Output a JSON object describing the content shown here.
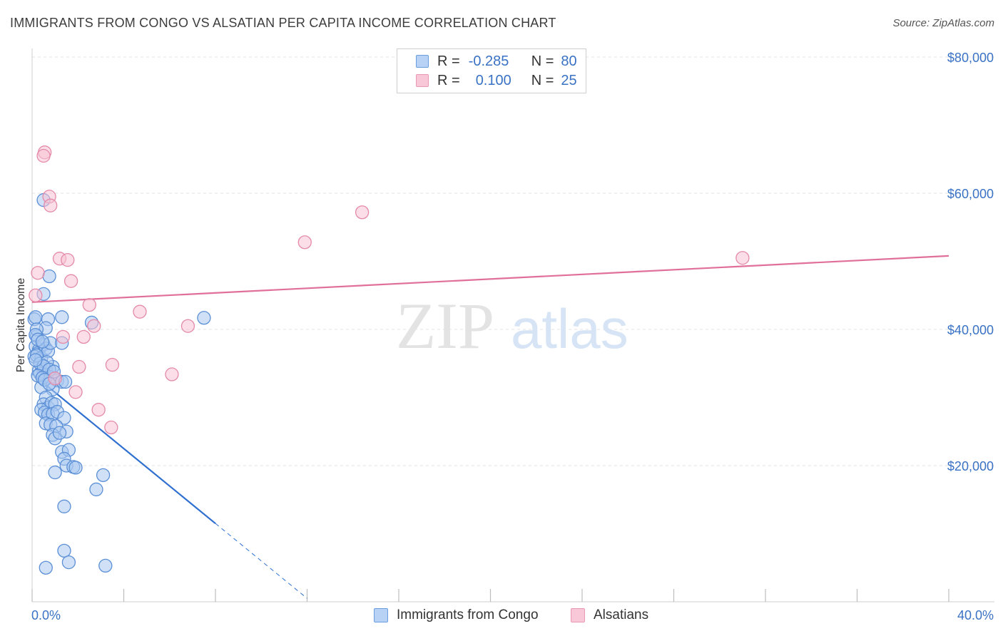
{
  "header": {
    "title": "IMMIGRANTS FROM CONGO VS ALSATIAN PER CAPITA INCOME CORRELATION CHART",
    "source": "Source: ZipAtlas.com"
  },
  "watermark": {
    "zip": "ZIP",
    "atlas": "atlas"
  },
  "legend": {
    "rows": [
      {
        "r_label": "R =",
        "r_value": "-0.285",
        "n_label": "N =",
        "n_value": "80",
        "fill": "#b8d2f5",
        "stroke": "#6a9de0"
      },
      {
        "r_label": "R =",
        "r_value": "0.100",
        "n_label": "N =",
        "n_value": "25",
        "fill": "#f9c8d8",
        "stroke": "#e898b2"
      }
    ]
  },
  "bottom_legend": [
    {
      "label": "Immigrants from Congo",
      "fill": "#b8d2f5",
      "stroke": "#6a9de0"
    },
    {
      "label": "Alsatians",
      "fill": "#f9c8d8",
      "stroke": "#e898b2"
    }
  ],
  "colors": {
    "blue_fill": "#a9c8f0",
    "blue_stroke": "#5b8fd6",
    "blue_line": "#2e6fd0",
    "pink_fill": "#f7c2d3",
    "pink_stroke": "#e48aa9",
    "pink_line": "#e0709a",
    "grid": "#e3e3e3",
    "axis_text": "#3a72c4"
  },
  "chart_data": {
    "type": "scatter",
    "title": "IMMIGRANTS FROM CONGO VS ALSATIAN PER CAPITA INCOME CORRELATION CHART",
    "xlabel": "",
    "ylabel": "Per Capita Income",
    "xlim": [
      0,
      40
    ],
    "ylim": [
      0,
      80000
    ],
    "x_tick_labels": [
      "0.0%",
      "40.0%"
    ],
    "y_ticks": [
      20000,
      40000,
      60000,
      80000
    ],
    "y_tick_labels": [
      "$20,000",
      "$40,000",
      "$60,000",
      "$80,000"
    ],
    "grid": true,
    "legend_placement": "top-center",
    "series": [
      {
        "name": "Immigrants from Congo",
        "points": [
          [
            0.1,
            41500
          ],
          [
            0.2,
            39000
          ],
          [
            0.15,
            37500
          ],
          [
            0.3,
            37000
          ],
          [
            0.25,
            36500
          ],
          [
            0.1,
            36000
          ],
          [
            0.4,
            35800
          ],
          [
            0.5,
            37800
          ],
          [
            0.6,
            37200
          ],
          [
            0.7,
            36800
          ],
          [
            0.8,
            38000
          ],
          [
            0.3,
            34000
          ],
          [
            0.5,
            33800
          ],
          [
            0.6,
            34200
          ],
          [
            0.9,
            34500
          ],
          [
            0.35,
            33500
          ],
          [
            0.8,
            33000
          ],
          [
            1.0,
            32800
          ],
          [
            1.1,
            32500
          ],
          [
            1.3,
            32300
          ],
          [
            0.4,
            31500
          ],
          [
            0.9,
            31200
          ],
          [
            0.6,
            30000
          ],
          [
            0.5,
            29000
          ],
          [
            0.7,
            28500
          ],
          [
            0.85,
            29200
          ],
          [
            1.0,
            29000
          ],
          [
            0.4,
            28200
          ],
          [
            0.55,
            27800
          ],
          [
            0.7,
            27500
          ],
          [
            0.9,
            27600
          ],
          [
            1.1,
            27900
          ],
          [
            1.4,
            27000
          ],
          [
            0.6,
            26200
          ],
          [
            0.8,
            26000
          ],
          [
            1.05,
            25800
          ],
          [
            1.5,
            25000
          ],
          [
            0.9,
            24500
          ],
          [
            1.0,
            24000
          ],
          [
            1.2,
            24800
          ],
          [
            1.3,
            22000
          ],
          [
            1.6,
            22300
          ],
          [
            1.4,
            21000
          ],
          [
            1.5,
            20000
          ],
          [
            1.8,
            19800
          ],
          [
            1.9,
            19700
          ],
          [
            1.0,
            19000
          ],
          [
            3.1,
            18600
          ],
          [
            2.8,
            16500
          ],
          [
            1.4,
            14000
          ],
          [
            0.5,
            59000
          ],
          [
            0.75,
            47800
          ],
          [
            0.5,
            45200
          ],
          [
            0.15,
            41800
          ],
          [
            0.7,
            41500
          ],
          [
            1.3,
            41800
          ],
          [
            0.6,
            40200
          ],
          [
            2.6,
            41000
          ],
          [
            7.5,
            41700
          ],
          [
            0.2,
            40000
          ],
          [
            0.15,
            39200
          ],
          [
            1.3,
            38000
          ],
          [
            0.25,
            38500
          ],
          [
            0.45,
            38200
          ],
          [
            0.2,
            36200
          ],
          [
            0.35,
            35000
          ],
          [
            0.65,
            35200
          ],
          [
            0.5,
            34600
          ],
          [
            0.75,
            34100
          ],
          [
            0.95,
            33800
          ],
          [
            0.25,
            33200
          ],
          [
            0.45,
            32900
          ],
          [
            0.55,
            32600
          ],
          [
            0.75,
            32000
          ],
          [
            1.45,
            32300
          ],
          [
            1.4,
            7500
          ],
          [
            1.6,
            5800
          ],
          [
            0.6,
            5000
          ],
          [
            3.2,
            5300
          ],
          [
            0.15,
            35500
          ]
        ]
      },
      {
        "name": "Alsatians",
        "points": [
          [
            0.55,
            66000
          ],
          [
            0.5,
            65500
          ],
          [
            0.75,
            59500
          ],
          [
            0.8,
            58200
          ],
          [
            14.4,
            57200
          ],
          [
            11.9,
            52800
          ],
          [
            31.0,
            50500
          ],
          [
            1.2,
            50400
          ],
          [
            1.55,
            50200
          ],
          [
            0.25,
            48300
          ],
          [
            1.7,
            47100
          ],
          [
            0.15,
            45000
          ],
          [
            2.5,
            43600
          ],
          [
            4.7,
            42600
          ],
          [
            2.7,
            40500
          ],
          [
            6.8,
            40500
          ],
          [
            1.35,
            38900
          ],
          [
            2.25,
            38900
          ],
          [
            3.5,
            34800
          ],
          [
            2.05,
            34500
          ],
          [
            6.1,
            33400
          ],
          [
            1.9,
            30800
          ],
          [
            2.9,
            28200
          ],
          [
            3.45,
            25600
          ],
          [
            1.0,
            32800
          ]
        ]
      }
    ],
    "trendlines": [
      {
        "series": "Immigrants from Congo",
        "x0": 0,
        "y0": 33500,
        "x1": 8.0,
        "y1": 11500,
        "dashed_to_x": 12.0,
        "dashed_to_y": 500
      },
      {
        "series": "Alsatians",
        "x0": 0,
        "y0": 44000,
        "x1": 40,
        "y1": 50800
      }
    ]
  }
}
